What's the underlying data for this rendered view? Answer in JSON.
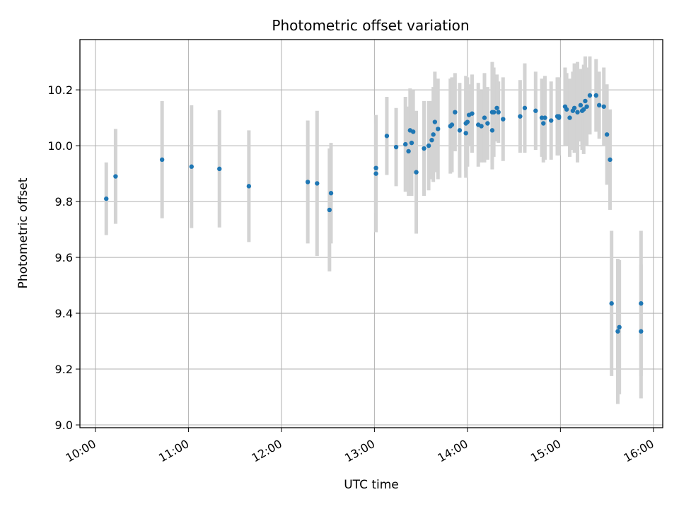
{
  "chart_data": {
    "type": "scatter",
    "title": "Photometric offset variation",
    "xlabel": "UTC time",
    "ylabel": "Photometric offset",
    "x_ticks": [
      "10:00",
      "11:00",
      "12:00",
      "13:00",
      "14:00",
      "15:00",
      "16:00"
    ],
    "y_ticks": [
      "9.0",
      "9.2",
      "9.4",
      "9.6",
      "9.8",
      "10.0",
      "10.2"
    ],
    "xlim": [
      "09:50",
      "16:06"
    ],
    "ylim": [
      8.99,
      10.38
    ],
    "grid": true,
    "point_color": "#1f77b4",
    "errorbar_color": "#d3d3d3",
    "series": [
      {
        "x": [
          "10:07",
          "10:13",
          "10:43",
          "11:02",
          "11:20",
          "11:39",
          "12:17",
          "12:23",
          "12:31",
          "12:32",
          "13:01",
          "13:01",
          "13:08",
          "13:14",
          "13:20",
          "13:22",
          "13:23",
          "13:24",
          "13:25",
          "13:27",
          "13:32",
          "13:35",
          "13:37",
          "13:38",
          "13:39",
          "13:41",
          "13:49",
          "13:50",
          "13:52",
          "13:55",
          "13:59",
          "13:59",
          "14:00",
          "14:01",
          "14:03",
          "14:07",
          "14:09",
          "14:11",
          "14:13",
          "14:16",
          "14:16",
          "14:17",
          "14:19",
          "14:20",
          "14:23",
          "14:34",
          "14:37",
          "14:44",
          "14:48",
          "14:49",
          "14:50",
          "14:54",
          "14:58",
          "14:59",
          "14:59",
          "15:03",
          "15:04",
          "15:06",
          "15:08",
          "15:09",
          "15:11",
          "15:13",
          "15:14",
          "15:15",
          "15:16",
          "15:17",
          "15:19",
          "15:23",
          "15:25",
          "15:28",
          "15:30",
          "15:32",
          "15:33",
          "15:37",
          "15:38",
          "15:52",
          "15:52"
        ],
        "y": [
          9.81,
          9.89,
          9.95,
          9.925,
          9.917,
          9.855,
          9.87,
          9.865,
          9.77,
          9.83,
          9.92,
          9.9,
          10.035,
          9.995,
          10.005,
          9.98,
          10.055,
          10.01,
          10.05,
          9.905,
          9.99,
          10.0,
          10.02,
          10.04,
          10.085,
          10.06,
          10.07,
          10.075,
          10.12,
          10.055,
          10.045,
          10.08,
          10.085,
          10.11,
          10.115,
          10.075,
          10.07,
          10.1,
          10.08,
          10.12,
          10.055,
          10.12,
          10.135,
          10.12,
          10.095,
          10.105,
          10.135,
          10.125,
          10.1,
          10.08,
          10.1,
          10.09,
          10.105,
          10.105,
          10.1,
          10.14,
          10.13,
          10.1,
          10.125,
          10.135,
          10.12,
          10.145,
          10.125,
          10.13,
          10.16,
          10.14,
          10.18,
          10.18,
          10.145,
          10.14,
          10.04,
          9.95,
          9.435,
          9.335,
          9.35,
          9.335,
          9.435
        ],
        "err": [
          0.13,
          0.17,
          0.21,
          0.22,
          0.21,
          0.2,
          0.22,
          0.26,
          0.22,
          0.18,
          0.16,
          0.21,
          0.14,
          0.14,
          0.17,
          0.16,
          0.15,
          0.19,
          0.15,
          0.22,
          0.17,
          0.16,
          0.14,
          0.17,
          0.18,
          0.18,
          0.17,
          0.17,
          0.14,
          0.17,
          0.16,
          0.17,
          0.16,
          0.11,
          0.14,
          0.15,
          0.13,
          0.16,
          0.13,
          0.18,
          0.14,
          0.16,
          0.12,
          0.11,
          0.15,
          0.13,
          0.16,
          0.14,
          0.14,
          0.14,
          0.15,
          0.14,
          0.14,
          0.14,
          0.12,
          0.14,
          0.13,
          0.14,
          0.14,
          0.16,
          0.18,
          0.13,
          0.14,
          0.16,
          0.16,
          0.14,
          0.14,
          0.13,
          0.12,
          0.14,
          0.18,
          0.18,
          0.26,
          0.26,
          0.24,
          0.24,
          0.26
        ]
      }
    ]
  }
}
